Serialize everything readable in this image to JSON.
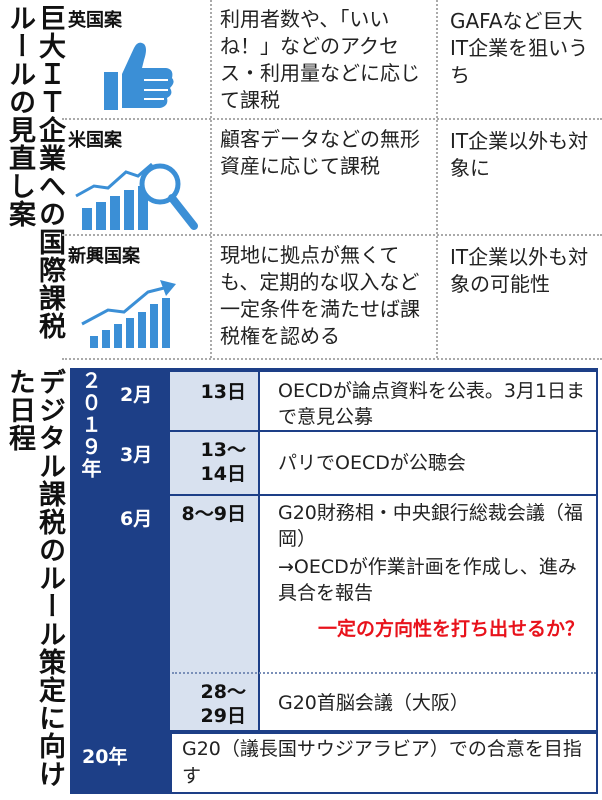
{
  "title_top": "巨大ＩＴ企業への国際課税ルールの見直し案",
  "title_bottom": "デジタル課税のルール策定に向けた日程",
  "proposals": [
    {
      "label": "英国案",
      "icon": "thumbs-up-icon",
      "desc": "利用者数や、「いいね！」などのアクセス・利用量などに応じて課税",
      "target": "GAFAなど巨大IT企業を狙いうち"
    },
    {
      "label": "米国案",
      "icon": "chart-magnifier-icon",
      "desc": "顧客データなどの無形資産に応じて課税",
      "target": "IT企業以外も対象に"
    },
    {
      "label": "新興国案",
      "icon": "rising-bars-icon",
      "desc": "現地に拠点が無くても、定期的な収入など一定条件を満たせば課税権を認める",
      "target": "IT企業以外も対象の可能性"
    }
  ],
  "schedule": {
    "year": "２０１９年",
    "entries": [
      {
        "month": "2月",
        "day": "13日",
        "event": "OECDが論点資料を公表。3月1日まで意見公募"
      },
      {
        "month": "3月",
        "day": "13～14日",
        "event": "パリでOECDが公聴会"
      },
      {
        "month": "6月",
        "day": "8～9日",
        "event": "G20財務相・中央銀行総裁会議（福岡）",
        "event_sub": "→OECDが作業計画を作成し、進み具合を報告",
        "event_highlight": "一定の方向性を打ち出せるか？"
      },
      {
        "month": "",
        "day": "28～29日",
        "event": "G20首脳会議（大阪）"
      }
    ],
    "final": {
      "year": "20年",
      "event": "G20（議長国サウジアラビア）での合意を目指す"
    }
  },
  "colors": {
    "accent": "#1d3f87",
    "light": "#d8e1ef",
    "icon_blue": "#3b8fd6",
    "highlight": "#e8121b"
  }
}
